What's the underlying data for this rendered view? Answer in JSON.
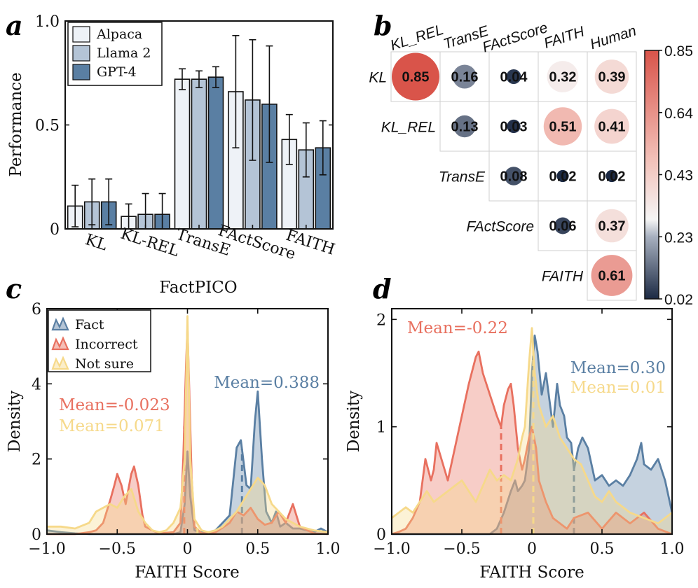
{
  "panels": {
    "a": "a",
    "b": "b",
    "c": "c",
    "d": "d"
  },
  "colors": {
    "alpaca": "#eef2f7",
    "llama": "#b4c4d6",
    "gpt4": "#5a7fa3",
    "fact": "#5a7fa3",
    "incorrect": "#e8705f",
    "notsure": "#f6d98a"
  },
  "chart_data": [
    {
      "id": "a",
      "type": "bar",
      "title": "",
      "xlabel": "FactPICO",
      "ylabel": "Performance",
      "ylim": [
        0,
        1.0
      ],
      "yticks": [
        "0",
        "0.5",
        "1.0"
      ],
      "categories": [
        "KL",
        "KL-REL",
        "TransE",
        "FActScore",
        "FAITH"
      ],
      "series": [
        {
          "name": "Alpaca",
          "values": [
            0.11,
            0.06,
            0.72,
            0.66,
            0.43
          ],
          "err": [
            0.1,
            0.06,
            0.05,
            0.27,
            0.12
          ]
        },
        {
          "name": "Llama 2",
          "values": [
            0.13,
            0.07,
            0.72,
            0.62,
            0.38
          ],
          "err": [
            0.11,
            0.1,
            0.04,
            0.29,
            0.13
          ]
        },
        {
          "name": "GPT-4",
          "values": [
            0.13,
            0.07,
            0.73,
            0.6,
            0.39
          ],
          "err": [
            0.11,
            0.1,
            0.05,
            0.28,
            0.13
          ]
        }
      ],
      "legend": "top-left"
    },
    {
      "id": "b",
      "type": "heatmap",
      "col_labels": [
        "KL_REL",
        "TransE",
        "FActScore",
        "FAITH",
        "Human"
      ],
      "row_labels": [
        "KL",
        "KL_REL",
        "TransE",
        "FActScore",
        "FAITH"
      ],
      "matrix": [
        [
          0.85,
          0.16,
          0.04,
          0.32,
          0.39
        ],
        [
          null,
          0.13,
          0.03,
          0.51,
          0.41
        ],
        [
          null,
          null,
          0.08,
          0.02,
          0.02
        ],
        [
          null,
          null,
          null,
          0.06,
          0.37
        ],
        [
          null,
          null,
          null,
          null,
          0.61
        ]
      ],
      "colorbar_ticks": [
        "0.85",
        "0.64",
        "0.43",
        "0.23",
        "0.02"
      ],
      "colorbar_range": [
        0.02,
        0.85
      ]
    },
    {
      "id": "c",
      "type": "area",
      "xlabel": "FAITH Score",
      "ylabel": "Density",
      "xlim": [
        -1.0,
        1.0
      ],
      "ylim": [
        0,
        6
      ],
      "xticks": [
        "−1.0",
        "−0.5",
        "0",
        "0.5",
        "1.0"
      ],
      "yticks": [
        "0",
        "2",
        "4",
        "6"
      ],
      "legend": "top-left",
      "series": [
        {
          "name": "Fact",
          "mean": 0.388,
          "mean_label": "Mean=0.388",
          "x": [
            -1.0,
            -0.9,
            -0.8,
            -0.7,
            -0.6,
            -0.55,
            -0.5,
            -0.45,
            -0.4,
            -0.35,
            -0.3,
            -0.2,
            -0.1,
            -0.05,
            -0.02,
            0.0,
            0.02,
            0.05,
            0.1,
            0.15,
            0.2,
            0.25,
            0.3,
            0.35,
            0.38,
            0.42,
            0.45,
            0.48,
            0.5,
            0.53,
            0.56,
            0.6,
            0.63,
            0.66,
            0.7,
            0.75,
            0.8,
            0.85,
            0.9,
            0.95,
            1.0
          ],
          "y": [
            0.1,
            0.05,
            0.02,
            0.0,
            0.0,
            0.0,
            0.0,
            0.0,
            0.0,
            0.0,
            0.0,
            0.0,
            0.0,
            0.05,
            0.8,
            2.2,
            1.0,
            0.1,
            0.05,
            0.05,
            0.1,
            0.3,
            0.5,
            2.3,
            2.5,
            1.3,
            1.2,
            3.0,
            3.8,
            2.0,
            0.6,
            0.3,
            0.6,
            0.2,
            0.3,
            0.15,
            0.15,
            0.1,
            0.05,
            0.15,
            0.05
          ]
        },
        {
          "name": "Incorrect",
          "mean": -0.023,
          "mean_label": "Mean=-0.023",
          "x": [
            -1.0,
            -0.8,
            -0.7,
            -0.65,
            -0.6,
            -0.55,
            -0.52,
            -0.5,
            -0.47,
            -0.44,
            -0.42,
            -0.4,
            -0.38,
            -0.35,
            -0.32,
            -0.3,
            -0.25,
            -0.2,
            -0.1,
            -0.05,
            -0.03,
            -0.01,
            0.0,
            0.01,
            0.03,
            0.05,
            0.1,
            0.2,
            0.3,
            0.35,
            0.4,
            0.45,
            0.5,
            0.55,
            0.6,
            0.65,
            0.7,
            0.75,
            0.8,
            0.9,
            1.0
          ],
          "y": [
            0.0,
            0.0,
            0.05,
            0.1,
            0.3,
            0.9,
            1.3,
            1.6,
            1.3,
            0.8,
            1.2,
            1.6,
            1.8,
            1.3,
            0.5,
            0.2,
            0.1,
            0.02,
            0.05,
            0.3,
            2.0,
            4.5,
            5.5,
            4.2,
            1.5,
            0.2,
            0.02,
            0.05,
            0.3,
            0.6,
            0.5,
            0.7,
            0.4,
            0.25,
            0.3,
            0.6,
            0.3,
            0.8,
            0.2,
            0.02,
            0.0
          ]
        },
        {
          "name": "Not sure",
          "mean": 0.071,
          "mean_label": "Mean=0.071",
          "x": [
            -1.0,
            -0.9,
            -0.8,
            -0.7,
            -0.65,
            -0.6,
            -0.55,
            -0.5,
            -0.45,
            -0.4,
            -0.35,
            -0.3,
            -0.25,
            -0.2,
            -0.15,
            -0.1,
            -0.05,
            -0.02,
            0.0,
            0.02,
            0.05,
            0.1,
            0.15,
            0.2,
            0.25,
            0.3,
            0.35,
            0.4,
            0.45,
            0.5,
            0.55,
            0.6,
            0.7,
            0.8,
            0.9,
            1.0
          ],
          "y": [
            0.2,
            0.2,
            0.15,
            0.3,
            0.6,
            0.7,
            0.8,
            0.7,
            1.0,
            1.2,
            0.6,
            0.3,
            0.1,
            0.05,
            0.1,
            0.3,
            0.7,
            2.0,
            5.8,
            2.0,
            0.4,
            0.1,
            0.05,
            0.1,
            0.2,
            0.4,
            0.6,
            0.9,
            1.2,
            1.5,
            1.3,
            0.8,
            0.4,
            0.2,
            0.1,
            0.05
          ]
        }
      ]
    },
    {
      "id": "d",
      "type": "area",
      "xlabel": "FAITH Score",
      "ylabel": "Density",
      "xlim": [
        -1.0,
        1.0
      ],
      "ylim": [
        0,
        2.1
      ],
      "xticks": [
        "−1.0",
        "−0.5",
        "0",
        "0.5",
        "1.0"
      ],
      "yticks": [
        "0",
        "1",
        "2"
      ],
      "series": [
        {
          "name": "Fact",
          "mean": 0.3,
          "mean_label": "Mean=0.30",
          "x": [
            -1.0,
            -0.8,
            -0.6,
            -0.4,
            -0.3,
            -0.25,
            -0.2,
            -0.15,
            -0.12,
            -0.1,
            -0.07,
            -0.05,
            -0.02,
            0.0,
            0.02,
            0.04,
            0.07,
            0.1,
            0.13,
            0.15,
            0.18,
            0.2,
            0.23,
            0.25,
            0.28,
            0.3,
            0.33,
            0.36,
            0.4,
            0.45,
            0.5,
            0.55,
            0.6,
            0.65,
            0.7,
            0.75,
            0.78,
            0.8,
            0.85,
            0.9,
            0.95,
            1.0
          ],
          "y": [
            0.0,
            0.0,
            0.0,
            0.0,
            0.0,
            0.05,
            0.2,
            0.4,
            0.5,
            0.4,
            0.45,
            0.5,
            0.8,
            1.5,
            1.85,
            1.7,
            1.3,
            1.5,
            1.2,
            1.0,
            1.4,
            1.2,
            1.1,
            0.9,
            0.85,
            0.6,
            0.8,
            0.9,
            0.8,
            0.5,
            0.55,
            0.45,
            0.5,
            0.45,
            0.55,
            0.7,
            0.85,
            0.65,
            0.6,
            0.7,
            0.5,
            0.2
          ]
        },
        {
          "name": "Incorrect",
          "mean": -0.22,
          "mean_label": "Mean=-0.22",
          "x": [
            -1.0,
            -0.95,
            -0.9,
            -0.85,
            -0.8,
            -0.76,
            -0.72,
            -0.7,
            -0.68,
            -0.6,
            -0.55,
            -0.5,
            -0.45,
            -0.4,
            -0.38,
            -0.35,
            -0.3,
            -0.25,
            -0.22,
            -0.2,
            -0.17,
            -0.15,
            -0.13,
            -0.1,
            -0.07,
            -0.05,
            -0.02,
            0.0,
            0.03,
            0.05,
            0.1,
            0.15,
            0.2,
            0.25,
            0.3,
            0.4,
            0.5,
            0.6,
            0.7,
            0.8,
            0.9,
            1.0
          ],
          "y": [
            0.0,
            0.02,
            0.05,
            0.15,
            0.3,
            0.7,
            0.5,
            0.6,
            0.85,
            0.5,
            0.8,
            1.1,
            1.4,
            1.65,
            1.7,
            1.5,
            1.3,
            1.1,
            1.0,
            1.2,
            1.35,
            1.4,
            1.2,
            0.8,
            0.6,
            0.7,
            0.9,
            1.0,
            0.8,
            0.5,
            0.3,
            0.15,
            0.1,
            0.05,
            0.15,
            0.2,
            0.05,
            0.2,
            0.1,
            0.2,
            0.05,
            0.0
          ]
        },
        {
          "name": "Not sure",
          "mean": 0.01,
          "mean_label": "Mean=0.01",
          "x": [
            -1.0,
            -0.95,
            -0.9,
            -0.85,
            -0.8,
            -0.75,
            -0.7,
            -0.65,
            -0.6,
            -0.55,
            -0.5,
            -0.45,
            -0.4,
            -0.35,
            -0.3,
            -0.25,
            -0.2,
            -0.15,
            -0.1,
            -0.07,
            -0.05,
            -0.02,
            0.0,
            0.02,
            0.05,
            0.1,
            0.15,
            0.2,
            0.25,
            0.3,
            0.35,
            0.4,
            0.45,
            0.5,
            0.55,
            0.6,
            0.7,
            0.8,
            0.9,
            1.0
          ],
          "y": [
            0.15,
            0.2,
            0.25,
            0.2,
            0.3,
            0.4,
            0.3,
            0.35,
            0.4,
            0.45,
            0.5,
            0.4,
            0.3,
            0.45,
            0.6,
            0.5,
            0.55,
            0.5,
            0.7,
            0.9,
            1.0,
            1.6,
            1.92,
            1.5,
            1.2,
            1.0,
            1.1,
            0.9,
            0.8,
            0.7,
            0.65,
            0.5,
            0.35,
            0.3,
            0.4,
            0.3,
            0.2,
            0.15,
            0.1,
            0.2
          ]
        }
      ]
    }
  ]
}
